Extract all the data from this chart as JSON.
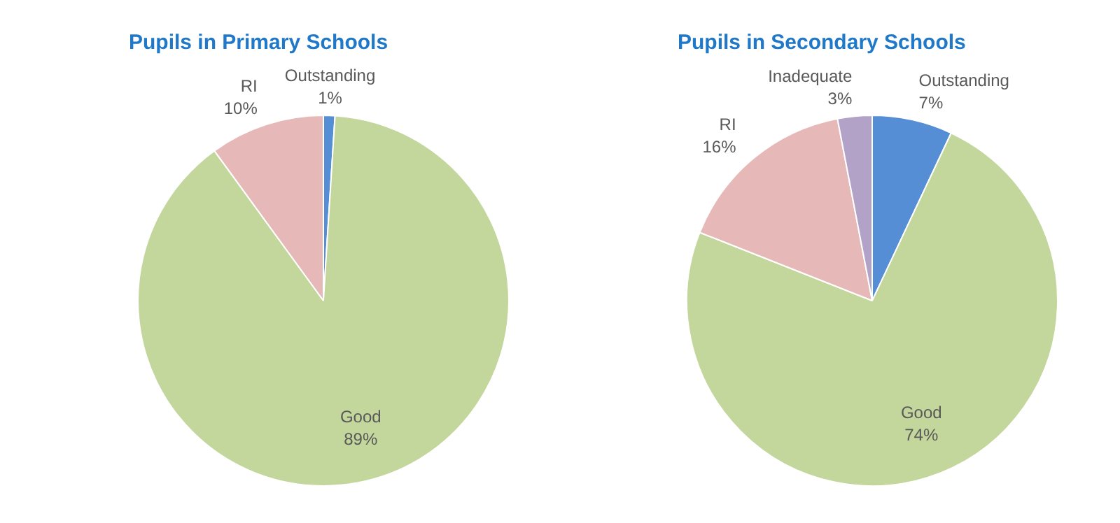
{
  "chart_data": [
    {
      "type": "pie",
      "title": "Pupils in Primary Schools",
      "categories": [
        "Outstanding",
        "Good",
        "RI"
      ],
      "values": [
        1,
        89,
        10
      ],
      "colors": [
        "#558ed5",
        "#c3d69b",
        "#e6b9b8"
      ],
      "value_labels": [
        "1%",
        "89%",
        "10%"
      ],
      "legend": false
    },
    {
      "type": "pie",
      "title": "Pupils in Secondary Schools",
      "categories": [
        "Outstanding",
        "Good",
        "RI",
        "Inadequate"
      ],
      "values": [
        7,
        74,
        16,
        3
      ],
      "colors": [
        "#558ed5",
        "#c3d69b",
        "#e6b9b8",
        "#b3a2c7"
      ],
      "value_labels": [
        "7%",
        "74%",
        "16%",
        "3%"
      ],
      "legend": false
    }
  ]
}
